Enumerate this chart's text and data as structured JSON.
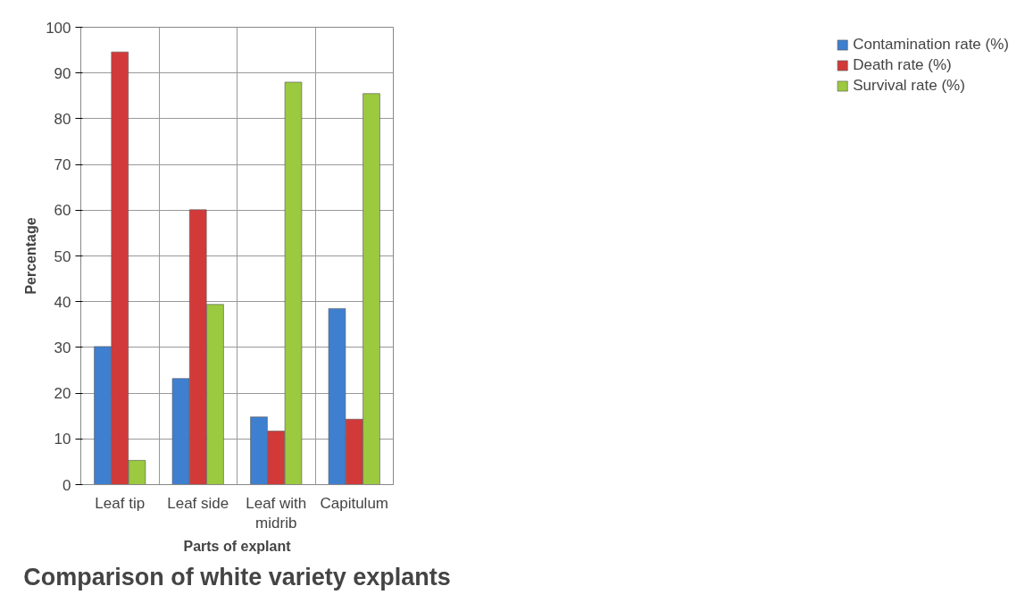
{
  "chart_data": {
    "type": "bar",
    "title": "Comparison of white variety explants",
    "xlabel": "Parts of explant",
    "ylabel": "Percentage",
    "categories": [
      "Leaf tip",
      "Leaf side",
      "Leaf with midrib",
      "Capitulum"
    ],
    "series": [
      {
        "name": "Contamination rate (%)",
        "color": "#3f7fd0",
        "values": [
          30.2,
          23.2,
          14.8,
          38.5
        ]
      },
      {
        "name": "Death rate (%)",
        "color": "#d23a3a",
        "values": [
          94.6,
          60.1,
          11.7,
          14.3
        ]
      },
      {
        "name": "Survival rate (%)",
        "color": "#9bc93f",
        "values": [
          5.3,
          39.4,
          88,
          85.5
        ]
      }
    ],
    "ylim": [
      0,
      100
    ],
    "yticks": [
      0,
      10,
      20,
      30,
      40,
      50,
      60,
      70,
      80,
      90,
      100
    ],
    "grid": true,
    "legend": "right"
  }
}
